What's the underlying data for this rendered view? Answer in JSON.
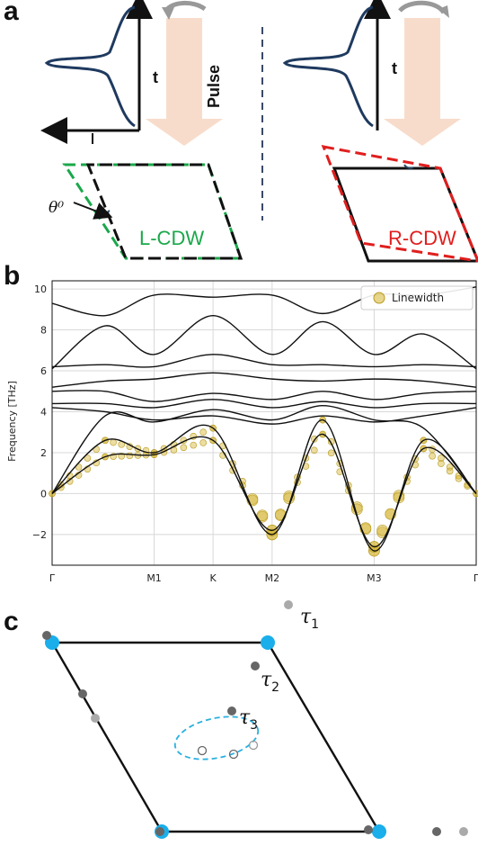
{
  "panel_a": {
    "letter": "a",
    "pulse_label": "Pulse",
    "time_axis_label": "t",
    "left_axis_label": "I",
    "theta_label": "θ⁰",
    "left_cdw": "L-CDW",
    "right_cdw": "R-CDW",
    "colors": {
      "left_cdw": "#1aa84a",
      "right_cdw": "#e01e1e",
      "pulse_arrow": "#f8dccb",
      "curve": "#1f3a5f"
    }
  },
  "panel_b": {
    "letter": "b",
    "legend": "Linewidth",
    "chart_data": {
      "type": "line",
      "ylabel": "Frequency [THz]",
      "xlabel": "",
      "ylim": [
        -3.5,
        10.4
      ],
      "yticks": [
        "10",
        "8",
        "6",
        "4",
        "2",
        "0",
        "−2"
      ],
      "ytick_values": [
        10,
        8,
        6,
        4,
        2,
        0,
        -2
      ],
      "xticks": [
        "Γ",
        "M1",
        "K",
        "M2",
        "M3",
        "Γ"
      ],
      "xtick_positions": [
        0,
        0.577,
        0.91,
        1.244,
        1.821,
        2.398
      ],
      "grid": true,
      "legend_position": "top-right",
      "series_color": "#111111",
      "marker_color": "#d4b42e",
      "bands": [
        [
          [
            0,
            9.3
          ],
          [
            0.3,
            8.7
          ],
          [
            0.577,
            9.7
          ],
          [
            0.91,
            9.6
          ],
          [
            1.244,
            9.7
          ],
          [
            1.53,
            8.8
          ],
          [
            1.821,
            9.7
          ],
          [
            2.1,
            9.7
          ],
          [
            2.398,
            10.1
          ]
        ],
        [
          [
            0,
            6.1
          ],
          [
            0.3,
            8.2
          ],
          [
            0.577,
            6.8
          ],
          [
            0.91,
            8.7
          ],
          [
            1.244,
            6.8
          ],
          [
            1.53,
            8.4
          ],
          [
            1.821,
            6.8
          ],
          [
            2.1,
            7.8
          ],
          [
            2.398,
            6.1
          ]
        ],
        [
          [
            0,
            6.2
          ],
          [
            0.3,
            6.3
          ],
          [
            0.577,
            6.2
          ],
          [
            0.91,
            6.8
          ],
          [
            1.244,
            6.3
          ],
          [
            1.53,
            6.3
          ],
          [
            1.821,
            6.2
          ],
          [
            2.1,
            6.3
          ],
          [
            2.398,
            6.2
          ]
        ],
        [
          [
            0,
            5.2
          ],
          [
            0.3,
            5.5
          ],
          [
            0.577,
            5.6
          ],
          [
            0.91,
            5.9
          ],
          [
            1.244,
            5.6
          ],
          [
            1.53,
            5.5
          ],
          [
            1.821,
            5.6
          ],
          [
            2.1,
            5.5
          ],
          [
            2.398,
            5.2
          ]
        ],
        [
          [
            0,
            5.0
          ],
          [
            0.3,
            5.0
          ],
          [
            0.577,
            4.5
          ],
          [
            0.91,
            4.9
          ],
          [
            1.244,
            4.6
          ],
          [
            1.53,
            5.0
          ],
          [
            1.821,
            4.6
          ],
          [
            2.1,
            4.9
          ],
          [
            2.398,
            5.0
          ]
        ],
        [
          [
            0,
            4.4
          ],
          [
            0.3,
            4.4
          ],
          [
            0.577,
            4.2
          ],
          [
            0.91,
            4.6
          ],
          [
            1.244,
            4.2
          ],
          [
            1.53,
            4.5
          ],
          [
            1.821,
            4.2
          ],
          [
            2.1,
            4.4
          ],
          [
            2.398,
            4.4
          ]
        ],
        [
          [
            0,
            4.2
          ],
          [
            0.3,
            4.0
          ],
          [
            0.577,
            3.6
          ],
          [
            0.91,
            3.8
          ],
          [
            1.244,
            3.4
          ],
          [
            1.53,
            3.8
          ],
          [
            1.821,
            3.5
          ],
          [
            2.1,
            3.8
          ],
          [
            2.398,
            4.2
          ]
        ],
        [
          [
            0,
            0
          ],
          [
            0.3,
            3.8
          ],
          [
            0.577,
            3.5
          ],
          [
            0.91,
            4.1
          ],
          [
            1.244,
            3.6
          ],
          [
            1.53,
            4.3
          ],
          [
            1.821,
            3.6
          ],
          [
            2.1,
            3.2
          ],
          [
            2.398,
            0
          ]
        ],
        [
          [
            0,
            0
          ],
          [
            0.3,
            2.6
          ],
          [
            0.577,
            2.0
          ],
          [
            0.91,
            3.2
          ],
          [
            1.244,
            -2.0
          ],
          [
            1.53,
            3.6
          ],
          [
            1.821,
            -2.8
          ],
          [
            2.1,
            2.6
          ],
          [
            2.398,
            0
          ]
        ],
        [
          [
            0,
            0
          ],
          [
            0.3,
            1.8
          ],
          [
            0.577,
            1.9
          ],
          [
            0.91,
            2.6
          ],
          [
            1.244,
            -1.8
          ],
          [
            1.53,
            2.9
          ],
          [
            1.821,
            -2.6
          ],
          [
            2.1,
            2.2
          ],
          [
            2.398,
            0
          ]
        ]
      ]
    }
  },
  "panel_c": {
    "letter": "c",
    "tau1": "τ",
    "tau1_sub": "1",
    "tau2": "τ",
    "tau2_sub": "2",
    "tau3": "τ",
    "tau3_sub": "3",
    "colors": {
      "corner": "#1aaeea",
      "dot_dark": "#666666",
      "dot_light": "#aaaaaa",
      "ellipse": "#2ab0e0"
    }
  }
}
